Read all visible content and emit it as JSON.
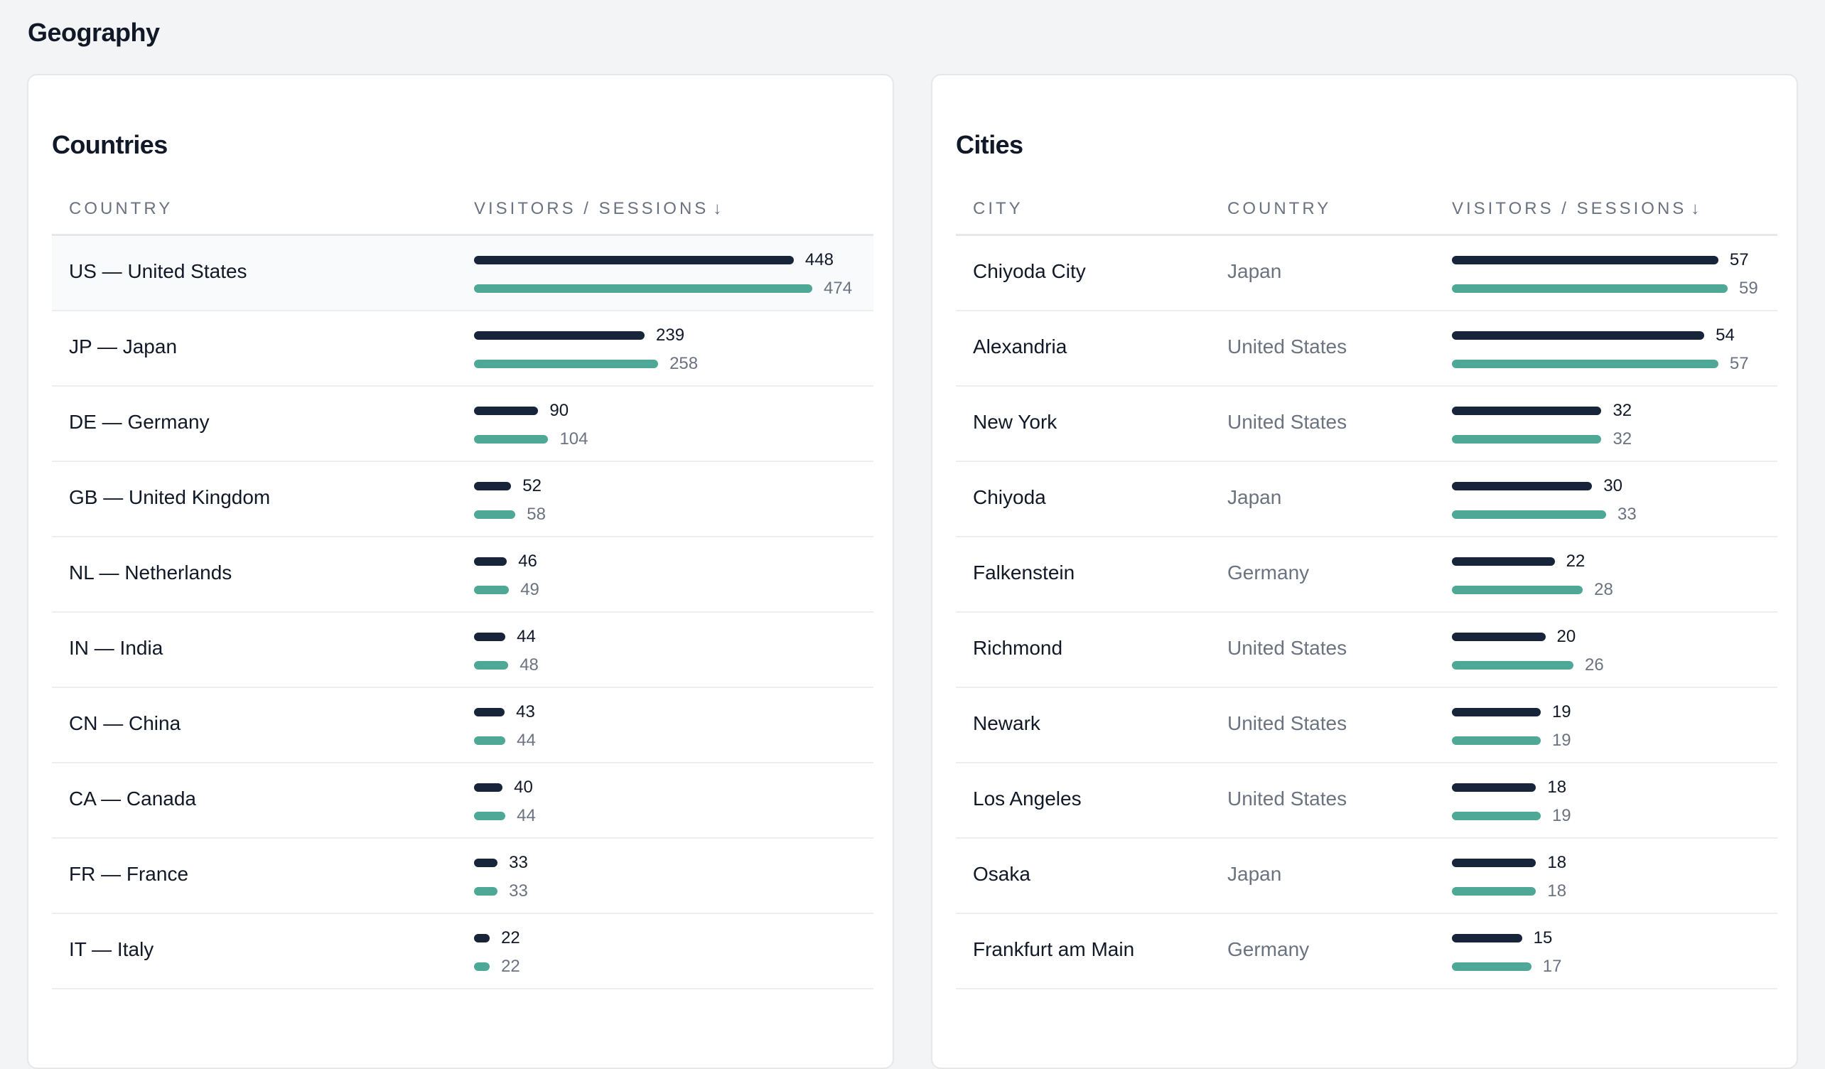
{
  "page": {
    "title": "Geography"
  },
  "colors": {
    "visitors_bar": "#172439",
    "sessions_bar": "#4fa896"
  },
  "countries": {
    "title": "Countries",
    "headers": {
      "country": "COUNTRY",
      "metric": "VISITORS / SESSIONS",
      "sort_icon": "↓"
    },
    "rows": [
      {
        "name": "US — United States",
        "visitors": 448,
        "sessions": 474
      },
      {
        "name": "JP — Japan",
        "visitors": 239,
        "sessions": 258
      },
      {
        "name": "DE — Germany",
        "visitors": 90,
        "sessions": 104
      },
      {
        "name": "GB — United Kingdom",
        "visitors": 52,
        "sessions": 58
      },
      {
        "name": "NL — Netherlands",
        "visitors": 46,
        "sessions": 49
      },
      {
        "name": "IN — India",
        "visitors": 44,
        "sessions": 48
      },
      {
        "name": "CN — China",
        "visitors": 43,
        "sessions": 44
      },
      {
        "name": "CA — Canada",
        "visitors": 40,
        "sessions": 44
      },
      {
        "name": "FR — France",
        "visitors": 33,
        "sessions": 33
      },
      {
        "name": "IT — Italy",
        "visitors": 22,
        "sessions": 22
      }
    ]
  },
  "cities": {
    "title": "Cities",
    "headers": {
      "city": "CITY",
      "country": "COUNTRY",
      "metric": "VISITORS / SESSIONS",
      "sort_icon": "↓"
    },
    "rows": [
      {
        "name": "Chiyoda City",
        "country": "Japan",
        "visitors": 57,
        "sessions": 59
      },
      {
        "name": "Alexandria",
        "country": "United States",
        "visitors": 54,
        "sessions": 57
      },
      {
        "name": "New York",
        "country": "United States",
        "visitors": 32,
        "sessions": 32
      },
      {
        "name": "Chiyoda",
        "country": "Japan",
        "visitors": 30,
        "sessions": 33
      },
      {
        "name": "Falkenstein",
        "country": "Germany",
        "visitors": 22,
        "sessions": 28
      },
      {
        "name": "Richmond",
        "country": "United States",
        "visitors": 20,
        "sessions": 26
      },
      {
        "name": "Newark",
        "country": "United States",
        "visitors": 19,
        "sessions": 19
      },
      {
        "name": "Los Angeles",
        "country": "United States",
        "visitors": 18,
        "sessions": 19
      },
      {
        "name": "Osaka",
        "country": "Japan",
        "visitors": 18,
        "sessions": 18
      },
      {
        "name": "Frankfurt am Main",
        "country": "Germany",
        "visitors": 15,
        "sessions": 17
      }
    ]
  }
}
